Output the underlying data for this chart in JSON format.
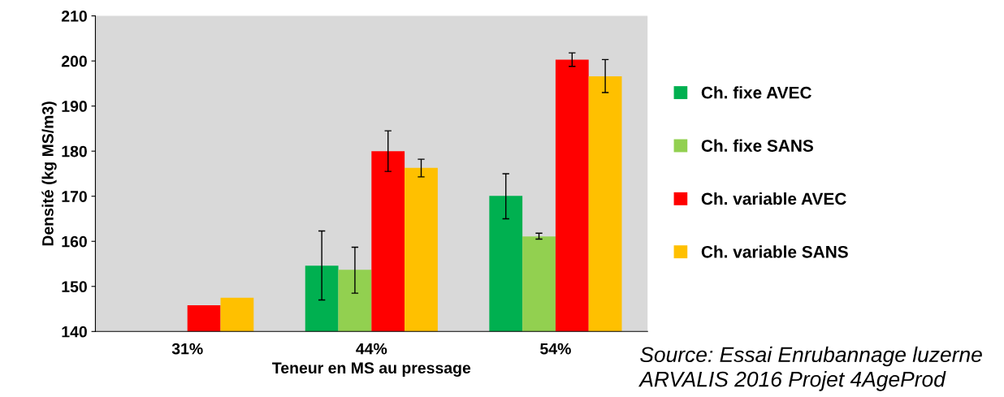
{
  "chart_data": {
    "type": "bar",
    "xlabel": "Teneur en MS au pressage",
    "ylabel": "Densité (kg MS/m3)",
    "categories": [
      "31%",
      "44%",
      "54%"
    ],
    "series": [
      {
        "name": "Ch. fixe AVEC",
        "color": "#00b050",
        "values": [
          null,
          154.6,
          170.1
        ],
        "errors": [
          null,
          [
            147.0,
            162.3
          ],
          [
            165.0,
            175.0
          ]
        ]
      },
      {
        "name": "Ch. fixe SANS",
        "color": "#92d050",
        "values": [
          null,
          153.7,
          161.1
        ],
        "errors": [
          null,
          [
            148.5,
            158.7
          ],
          [
            160.5,
            161.8
          ]
        ]
      },
      {
        "name": "Ch. variable AVEC",
        "color": "#ff0000",
        "values": [
          145.8,
          180.0,
          200.3
        ],
        "errors": [
          null,
          [
            175.5,
            184.5
          ],
          [
            198.8,
            201.8
          ]
        ]
      },
      {
        "name": "Ch. variable SANS",
        "color": "#ffc000",
        "values": [
          147.5,
          176.3,
          196.6
        ],
        "errors": [
          null,
          [
            174.3,
            178.2
          ],
          [
            193.0,
            200.3
          ]
        ]
      }
    ],
    "ylim": [
      140,
      210
    ],
    "yticks": [
      140,
      150,
      160,
      170,
      180,
      190,
      200,
      210
    ],
    "grid": false,
    "legend": "right",
    "annotations": [
      "Source: Essai Enrubannage luzerne ARVALIS 2016 Projet 4AgeProd"
    ]
  }
}
